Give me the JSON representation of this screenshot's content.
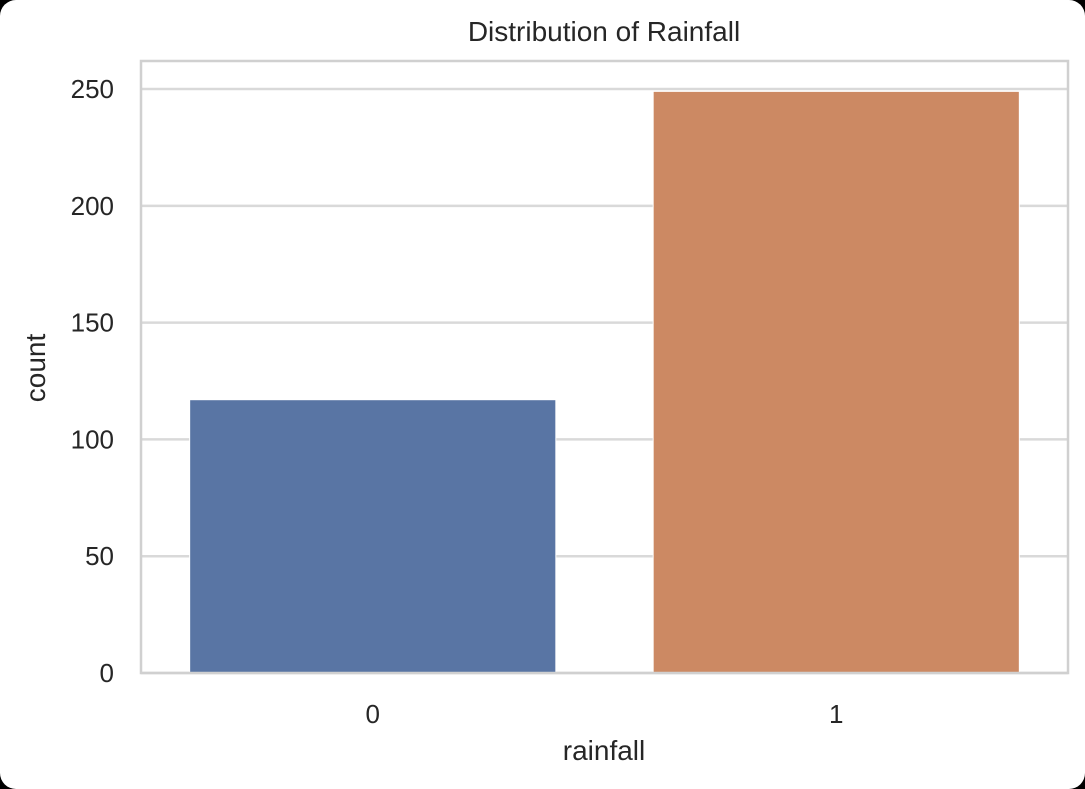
{
  "chart_data": {
    "type": "bar",
    "title": "Distribution of Rainfall",
    "xlabel": "rainfall",
    "ylabel": "count",
    "categories": [
      "0",
      "1"
    ],
    "values": [
      117,
      249
    ],
    "colors": [
      "#5975a4",
      "#cc8963"
    ],
    "ylim": [
      0,
      262
    ],
    "yticks": [
      0,
      50,
      100,
      150,
      200,
      250
    ],
    "grid": true,
    "grid_color": "#d9d9d9",
    "spine_color": "#d0d0d0"
  }
}
